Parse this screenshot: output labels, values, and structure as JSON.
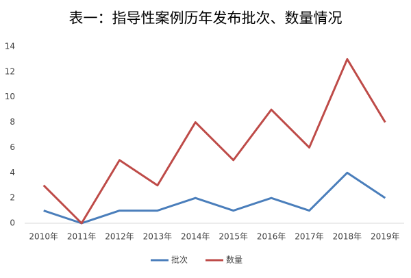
{
  "chart_data": {
    "type": "line",
    "title": "表一：指导性案例历年发布批次、数量情况",
    "categories": [
      "2010年",
      "2011年",
      "2012年",
      "2013年",
      "2014年",
      "2015年",
      "2016年",
      "2017年",
      "2018年",
      "2019年"
    ],
    "series": [
      {
        "name": "批次",
        "color": "#4a7ebb",
        "values": [
          1,
          0,
          1,
          1,
          2,
          1,
          2,
          1,
          4,
          2
        ]
      },
      {
        "name": "数量",
        "color": "#be4b48",
        "values": [
          3,
          0,
          5,
          3,
          8,
          5,
          9,
          6,
          13,
          8
        ]
      }
    ],
    "ylim": [
      0,
      14
    ],
    "yticks": [
      0,
      2,
      4,
      6,
      8,
      10,
      12,
      14
    ],
    "grid": false,
    "legend": "bottom"
  }
}
